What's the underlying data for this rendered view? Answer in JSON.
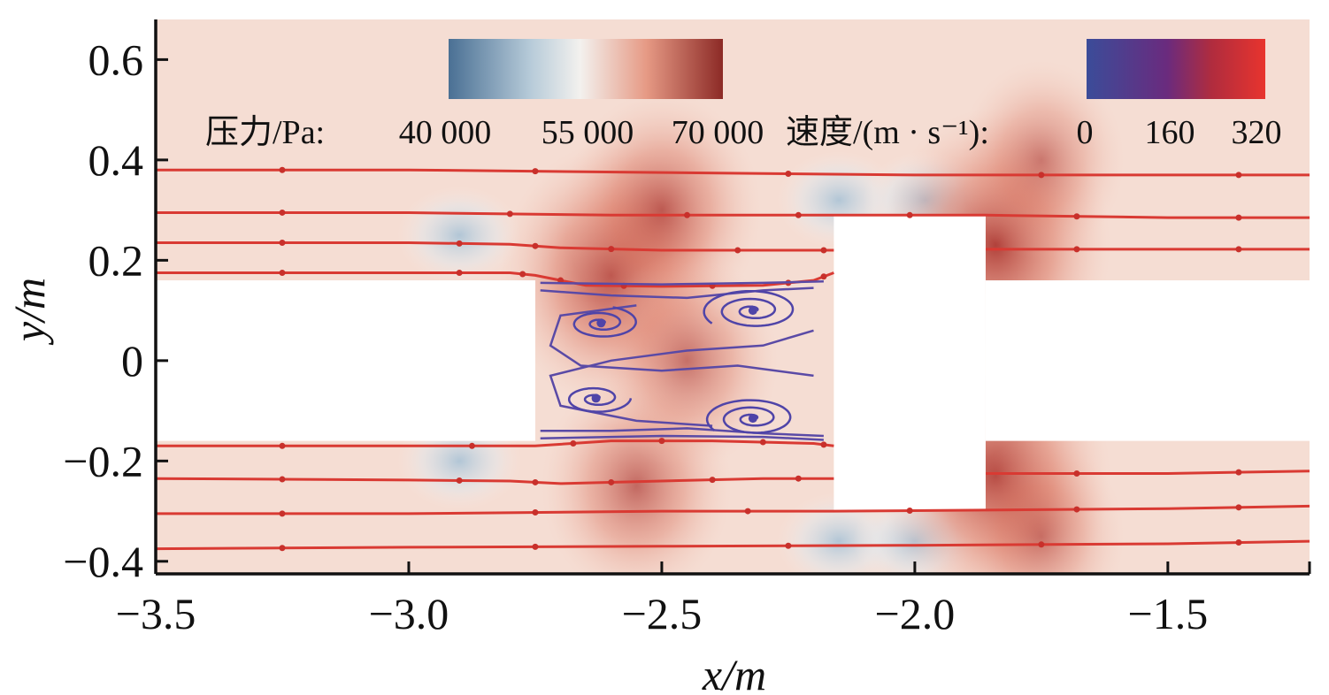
{
  "chart_data": {
    "type": "heatmap",
    "description_type": "contour-with-streamlines",
    "xlabel": "x/m",
    "ylabel": "y/m",
    "xlim": [
      -3.5,
      -1.22
    ],
    "ylim": [
      -0.425,
      0.68
    ],
    "x_ticks": [
      {
        "value": -3.5,
        "label": "−3.5"
      },
      {
        "value": -3.0,
        "label": "−3.0"
      },
      {
        "value": -2.5,
        "label": "−2.5"
      },
      {
        "value": -2.0,
        "label": "−2.0"
      },
      {
        "value": -1.5,
        "label": "−1.5"
      }
    ],
    "y_ticks": [
      {
        "value": 0.6,
        "label": "0.6"
      },
      {
        "value": 0.4,
        "label": "0.4"
      },
      {
        "value": 0.2,
        "label": "0.2"
      },
      {
        "value": 0,
        "label": "0"
      },
      {
        "value": -0.2,
        "label": "−0.2"
      },
      {
        "value": -0.4,
        "label": "−0.4"
      }
    ],
    "colorbars": [
      {
        "label": "压力/Pa:",
        "tick_labels": [
          "40 000",
          "55 000",
          "70 000"
        ],
        "range": [
          40000,
          70000
        ],
        "colors": [
          "#4a7094",
          "#f3f1ee",
          "#8c2a26"
        ]
      },
      {
        "label": "速度/(m · s⁻¹):",
        "tick_labels": [
          "0",
          "160",
          "320"
        ],
        "range": [
          0,
          320
        ],
        "colors": [
          "#3b4c99",
          "#8c2a6a",
          "#e8342e"
        ]
      }
    ],
    "solid_regions": [
      {
        "x": [
          -3.5,
          -2.75
        ],
        "y": [
          -0.16,
          0.16
        ]
      },
      {
        "x": [
          -2.16,
          -1.86
        ],
        "y": [
          -0.3,
          0.29
        ]
      },
      {
        "x": [
          -1.86,
          -1.22
        ],
        "y": [
          -0.16,
          0.16
        ]
      }
    ],
    "pressure_hotspots": [
      {
        "x": -2.6,
        "y": 0.17,
        "level": 0.95
      },
      {
        "x": -2.5,
        "y": 0.3,
        "level": 0.8
      },
      {
        "x": -2.55,
        "y": -0.25,
        "level": 0.75
      },
      {
        "x": -1.84,
        "y": 0.23,
        "level": 1.0
      },
      {
        "x": -1.84,
        "y": -0.23,
        "level": 1.0
      },
      {
        "x": -1.75,
        "y": 0.4,
        "level": 0.6
      },
      {
        "x": -1.75,
        "y": -0.35,
        "level": 0.6
      },
      {
        "x": -2.45,
        "y": 0.0,
        "level": 0.7
      }
    ],
    "pressure_lowspots": [
      {
        "x": -2.9,
        "y": 0.25
      },
      {
        "x": -2.9,
        "y": -0.2
      },
      {
        "x": -2.15,
        "y": 0.32
      },
      {
        "x": -2.15,
        "y": -0.36
      },
      {
        "x": -1.98,
        "y": 0.32
      },
      {
        "x": -2.0,
        "y": -0.36
      }
    ],
    "streamlines_main": [
      {
        "name": "",
        "points": [
          [
            -3.5,
            0.38
          ],
          [
            -3.0,
            0.38
          ],
          [
            -2.5,
            0.375
          ],
          [
            -2.0,
            0.37
          ],
          [
            -1.5,
            0.37
          ],
          [
            -1.22,
            0.37
          ]
        ]
      },
      {
        "name": "",
        "points": [
          [
            -3.5,
            0.295
          ],
          [
            -3.0,
            0.295
          ],
          [
            -2.6,
            0.29
          ],
          [
            -2.3,
            0.29
          ],
          [
            -2.16,
            0.29
          ],
          [
            -1.86,
            0.29
          ],
          [
            -1.5,
            0.285
          ],
          [
            -1.22,
            0.285
          ]
        ]
      },
      {
        "name": "",
        "points": [
          [
            -3.5,
            0.235
          ],
          [
            -3.0,
            0.235
          ],
          [
            -2.8,
            0.232
          ],
          [
            -2.7,
            0.225
          ],
          [
            -2.5,
            0.22
          ],
          [
            -2.2,
            0.22
          ],
          [
            -2.16,
            0.22
          ]
        ]
      },
      {
        "name": "",
        "points": [
          [
            -1.86,
            0.222
          ],
          [
            -1.5,
            0.222
          ],
          [
            -1.22,
            0.222
          ]
        ]
      },
      {
        "name": "",
        "points": [
          [
            -3.5,
            0.175
          ],
          [
            -3.0,
            0.175
          ],
          [
            -2.8,
            0.175
          ],
          [
            -2.75,
            0.17
          ],
          [
            -2.65,
            0.15
          ],
          [
            -2.5,
            0.148
          ],
          [
            -2.3,
            0.15
          ],
          [
            -2.2,
            0.16
          ],
          [
            -2.16,
            0.175
          ]
        ]
      },
      {
        "name": "",
        "points": [
          [
            -3.5,
            -0.17
          ],
          [
            -3.0,
            -0.17
          ],
          [
            -2.75,
            -0.17
          ],
          [
            -2.6,
            -0.16
          ],
          [
            -2.4,
            -0.16
          ],
          [
            -2.2,
            -0.165
          ],
          [
            -2.16,
            -0.17
          ]
        ]
      },
      {
        "name": "",
        "points": [
          [
            -3.5,
            -0.235
          ],
          [
            -3.0,
            -0.238
          ],
          [
            -2.8,
            -0.24
          ],
          [
            -2.7,
            -0.245
          ],
          [
            -2.5,
            -0.24
          ],
          [
            -2.3,
            -0.235
          ],
          [
            -2.16,
            -0.235
          ]
        ]
      },
      {
        "name": "",
        "points": [
          [
            -1.86,
            -0.225
          ],
          [
            -1.5,
            -0.225
          ],
          [
            -1.22,
            -0.22
          ]
        ]
      },
      {
        "name": "",
        "points": [
          [
            -3.5,
            -0.305
          ],
          [
            -3.0,
            -0.305
          ],
          [
            -2.5,
            -0.3
          ],
          [
            -2.16,
            -0.3
          ],
          [
            -1.86,
            -0.298
          ],
          [
            -1.5,
            -0.295
          ],
          [
            -1.22,
            -0.29
          ]
        ]
      },
      {
        "name": "",
        "points": [
          [
            -3.5,
            -0.375
          ],
          [
            -3.0,
            -0.372
          ],
          [
            -2.5,
            -0.37
          ],
          [
            -2.0,
            -0.368
          ],
          [
            -1.5,
            -0.365
          ],
          [
            -1.22,
            -0.36
          ]
        ]
      }
    ],
    "vortices": [
      {
        "cx": -2.62,
        "cy": 0.075,
        "rmax": 0.06,
        "turns": 2.2
      },
      {
        "cx": -2.32,
        "cy": 0.1,
        "rmax": 0.08,
        "turns": 2.6
      },
      {
        "cx": -2.63,
        "cy": -0.075,
        "rmax": 0.055,
        "turns": 2.0
      },
      {
        "cx": -2.32,
        "cy": -0.115,
        "rmax": 0.075,
        "turns": 2.6
      }
    ],
    "recirculation_lines": [
      {
        "points": [
          [
            -2.74,
            0.14
          ],
          [
            -2.6,
            0.13
          ],
          [
            -2.45,
            0.125
          ],
          [
            -2.3,
            0.14
          ],
          [
            -2.2,
            0.145
          ]
        ]
      },
      {
        "points": [
          [
            -2.74,
            -0.14
          ],
          [
            -2.6,
            -0.14
          ],
          [
            -2.45,
            -0.135
          ],
          [
            -2.3,
            -0.145
          ],
          [
            -2.18,
            -0.15
          ]
        ]
      },
      {
        "points": [
          [
            -2.2,
            0.06
          ],
          [
            -2.3,
            0.03
          ],
          [
            -2.45,
            0.02
          ],
          [
            -2.6,
            0.0
          ],
          [
            -2.72,
            -0.03
          ],
          [
            -2.7,
            -0.09
          ],
          [
            -2.55,
            -0.12
          ],
          [
            -2.4,
            -0.13
          ]
        ]
      },
      {
        "points": [
          [
            -2.2,
            -0.03
          ],
          [
            -2.35,
            -0.01
          ],
          [
            -2.5,
            -0.02
          ],
          [
            -2.66,
            -0.01
          ],
          [
            -2.72,
            0.03
          ],
          [
            -2.7,
            0.09
          ],
          [
            -2.55,
            0.11
          ]
        ]
      },
      {
        "points": [
          [
            -2.74,
            0.155
          ],
          [
            -2.5,
            0.152
          ],
          [
            -2.3,
            0.155
          ],
          [
            -2.18,
            0.158
          ]
        ]
      },
      {
        "points": [
          [
            -2.74,
            -0.155
          ],
          [
            -2.5,
            -0.15
          ],
          [
            -2.3,
            -0.152
          ],
          [
            -2.18,
            -0.158
          ]
        ]
      }
    ]
  }
}
